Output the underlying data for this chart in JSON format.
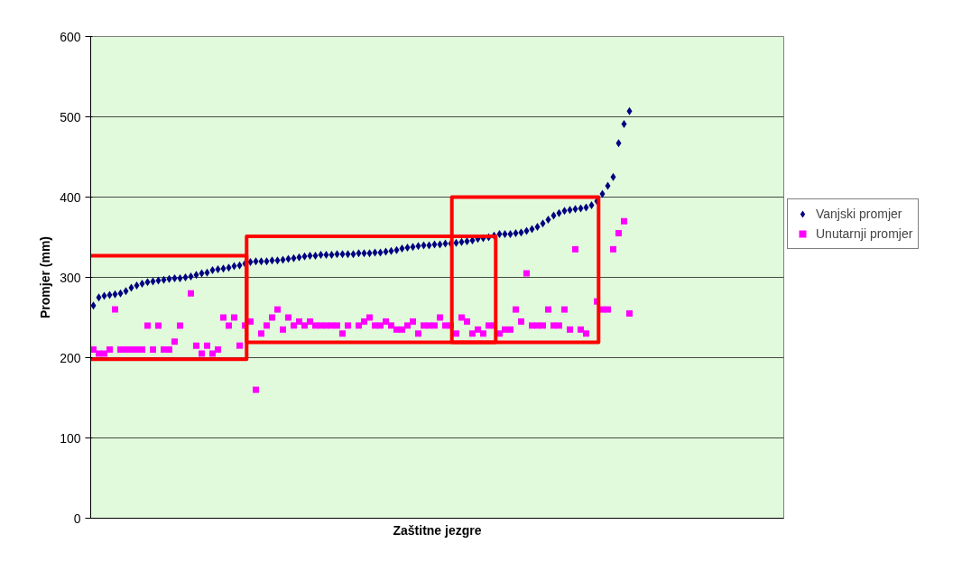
{
  "chart_data": {
    "type": "scatter",
    "xlabel": "Zaštitne jezgre",
    "ylabel": "Promjer (mm)",
    "categories": [
      null,
      null,
      null,
      null,
      null,
      null,
      null,
      null,
      null,
      null,
      null,
      null,
      null,
      null,
      null,
      null,
      null,
      null,
      null,
      null,
      null,
      null,
      null,
      null,
      null,
      null,
      null,
      null,
      null,
      null,
      null,
      null,
      null,
      null,
      null,
      null,
      null,
      null,
      null,
      null,
      null,
      null,
      null,
      null,
      null,
      null,
      null,
      null,
      null,
      null,
      null,
      null,
      null,
      null,
      null,
      null,
      null,
      null,
      null,
      null,
      null,
      null,
      null,
      null,
      null,
      null,
      null,
      null,
      null,
      null,
      null,
      null,
      null,
      null,
      null,
      null,
      null,
      null,
      null,
      null,
      null,
      null,
      null,
      null,
      null,
      null,
      null,
      null,
      null,
      null,
      null,
      null,
      null,
      null,
      null,
      null,
      null,
      null,
      null,
      null,
      null,
      null,
      null,
      null,
      null,
      null,
      null,
      null,
      null,
      null,
      null,
      null,
      null,
      null,
      null,
      null,
      null,
      null,
      null,
      null,
      null,
      null,
      null,
      null,
      null,
      null,
      null,
      null
    ],
    "ylim": [
      0,
      600
    ],
    "yticks": [
      0,
      100,
      200,
      300,
      400,
      500,
      600
    ],
    "grid": "y",
    "legend": "right",
    "series": [
      {
        "name": "Vanjski promjer",
        "color": "#000080",
        "marker": "diamond",
        "values": [
          265,
          275,
          277,
          278,
          279,
          280,
          283,
          287,
          290,
          292,
          294,
          295,
          296,
          297,
          298,
          299,
          299,
          300,
          301,
          303,
          305,
          306,
          309,
          310,
          311,
          312,
          314,
          315,
          317,
          319,
          320,
          320,
          320,
          321,
          321,
          322,
          323,
          324,
          325,
          326,
          327,
          327,
          328,
          328,
          328,
          329,
          329,
          329,
          329,
          330,
          330,
          330,
          331,
          331,
          332,
          333,
          334,
          336,
          337,
          338,
          339,
          340,
          340,
          341,
          341,
          342,
          342,
          343,
          344,
          345,
          346,
          348,
          349,
          350,
          352,
          354,
          354,
          354,
          355,
          356,
          358,
          360,
          363,
          367,
          372,
          377,
          380,
          383,
          384,
          385,
          386,
          387,
          390,
          395,
          404,
          414,
          425,
          467,
          491,
          507,
          null,
          null,
          null,
          null,
          null,
          null,
          null,
          null,
          null,
          null,
          null,
          null,
          null,
          null,
          null,
          null,
          null,
          null,
          null,
          null,
          null,
          null,
          null,
          null,
          null,
          null,
          null,
          null
        ]
      },
      {
        "name": "Unutarnji promjer",
        "color": "#ff00ff",
        "marker": "square",
        "values": [
          210,
          205,
          205,
          210,
          260,
          210,
          210,
          210,
          210,
          210,
          240,
          210,
          240,
          210,
          210,
          220,
          240,
          null,
          280,
          215,
          205,
          215,
          205,
          210,
          250,
          240,
          250,
          215,
          240,
          245,
          160,
          230,
          240,
          250,
          260,
          235,
          250,
          240,
          245,
          240,
          245,
          240,
          240,
          240,
          240,
          240,
          230,
          240,
          null,
          240,
          245,
          250,
          240,
          240,
          245,
          240,
          235,
          235,
          240,
          245,
          230,
          240,
          240,
          240,
          250,
          240,
          240,
          230,
          250,
          245,
          230,
          235,
          230,
          240,
          240,
          230,
          235,
          235,
          260,
          245,
          305,
          240,
          240,
          240,
          260,
          240,
          240,
          260,
          235,
          335,
          235,
          230,
          null,
          270,
          260,
          260,
          335,
          355,
          370,
          255,
          null,
          null,
          null,
          null,
          null,
          null,
          null,
          null,
          null,
          null,
          null,
          null,
          null,
          null,
          null,
          null,
          null,
          null,
          null,
          null,
          null,
          null,
          null,
          null,
          null,
          null,
          null,
          null
        ]
      }
    ]
  }
}
